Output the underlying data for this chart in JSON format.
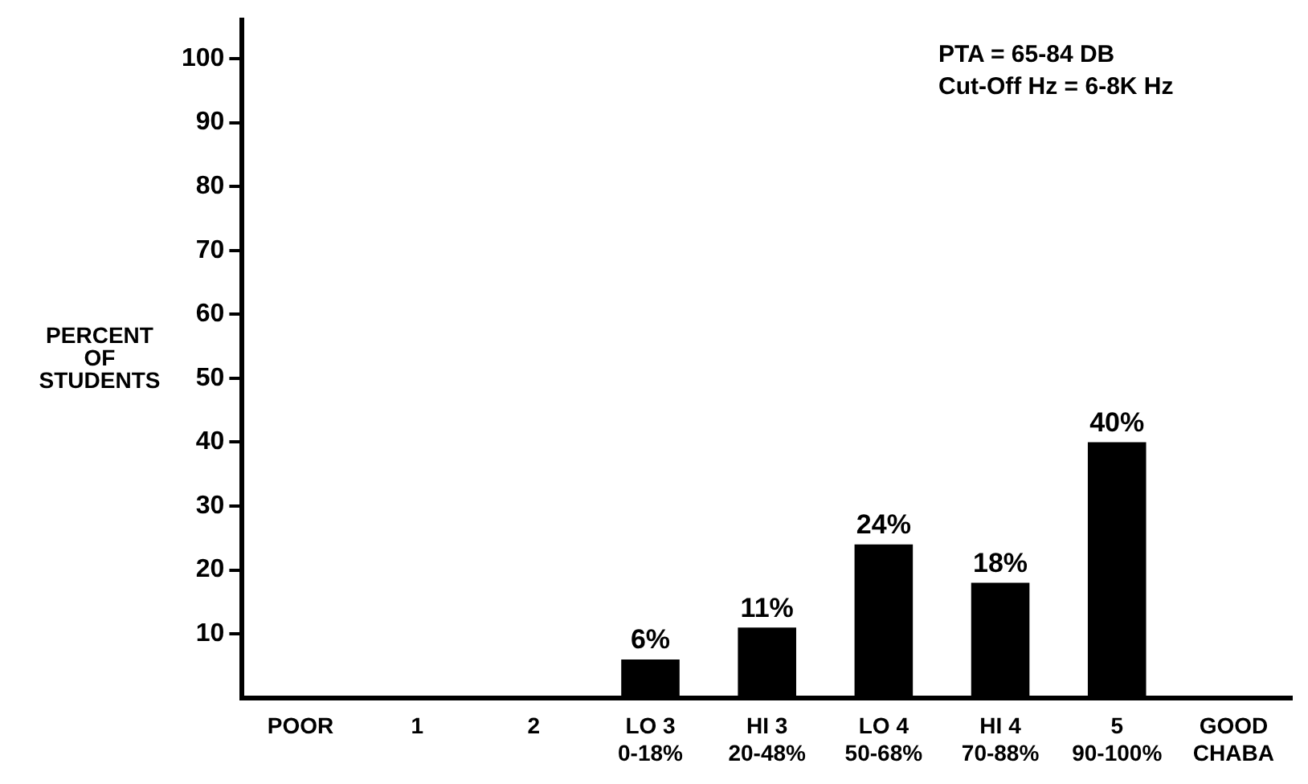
{
  "chart_data": {
    "type": "bar",
    "ylabel": "PERCENT\nOF\nSTUDENTS",
    "categories": [
      "POOR",
      "1",
      "2",
      "LO 3\n0-18%",
      "HI 3\n20-48%",
      "LO 4\n50-68%",
      "HI 4\n70-88%",
      "5\n90-100%",
      "GOOD\nCHABA"
    ],
    "values": [
      null,
      0,
      0,
      6,
      11,
      24,
      18,
      40,
      null
    ],
    "value_labels": [
      null,
      null,
      null,
      "6%",
      "11%",
      "24%",
      "18%",
      "40%",
      null
    ],
    "color": "#000000",
    "ylim": [
      0,
      106
    ],
    "yticks": [
      10,
      20,
      30,
      40,
      50,
      60,
      70,
      80,
      90,
      100
    ],
    "annotations": [
      "PTA = 65-84 DB",
      "Cut-Off Hz = 6-8K Hz"
    ],
    "grid": false,
    "legend": false
  }
}
